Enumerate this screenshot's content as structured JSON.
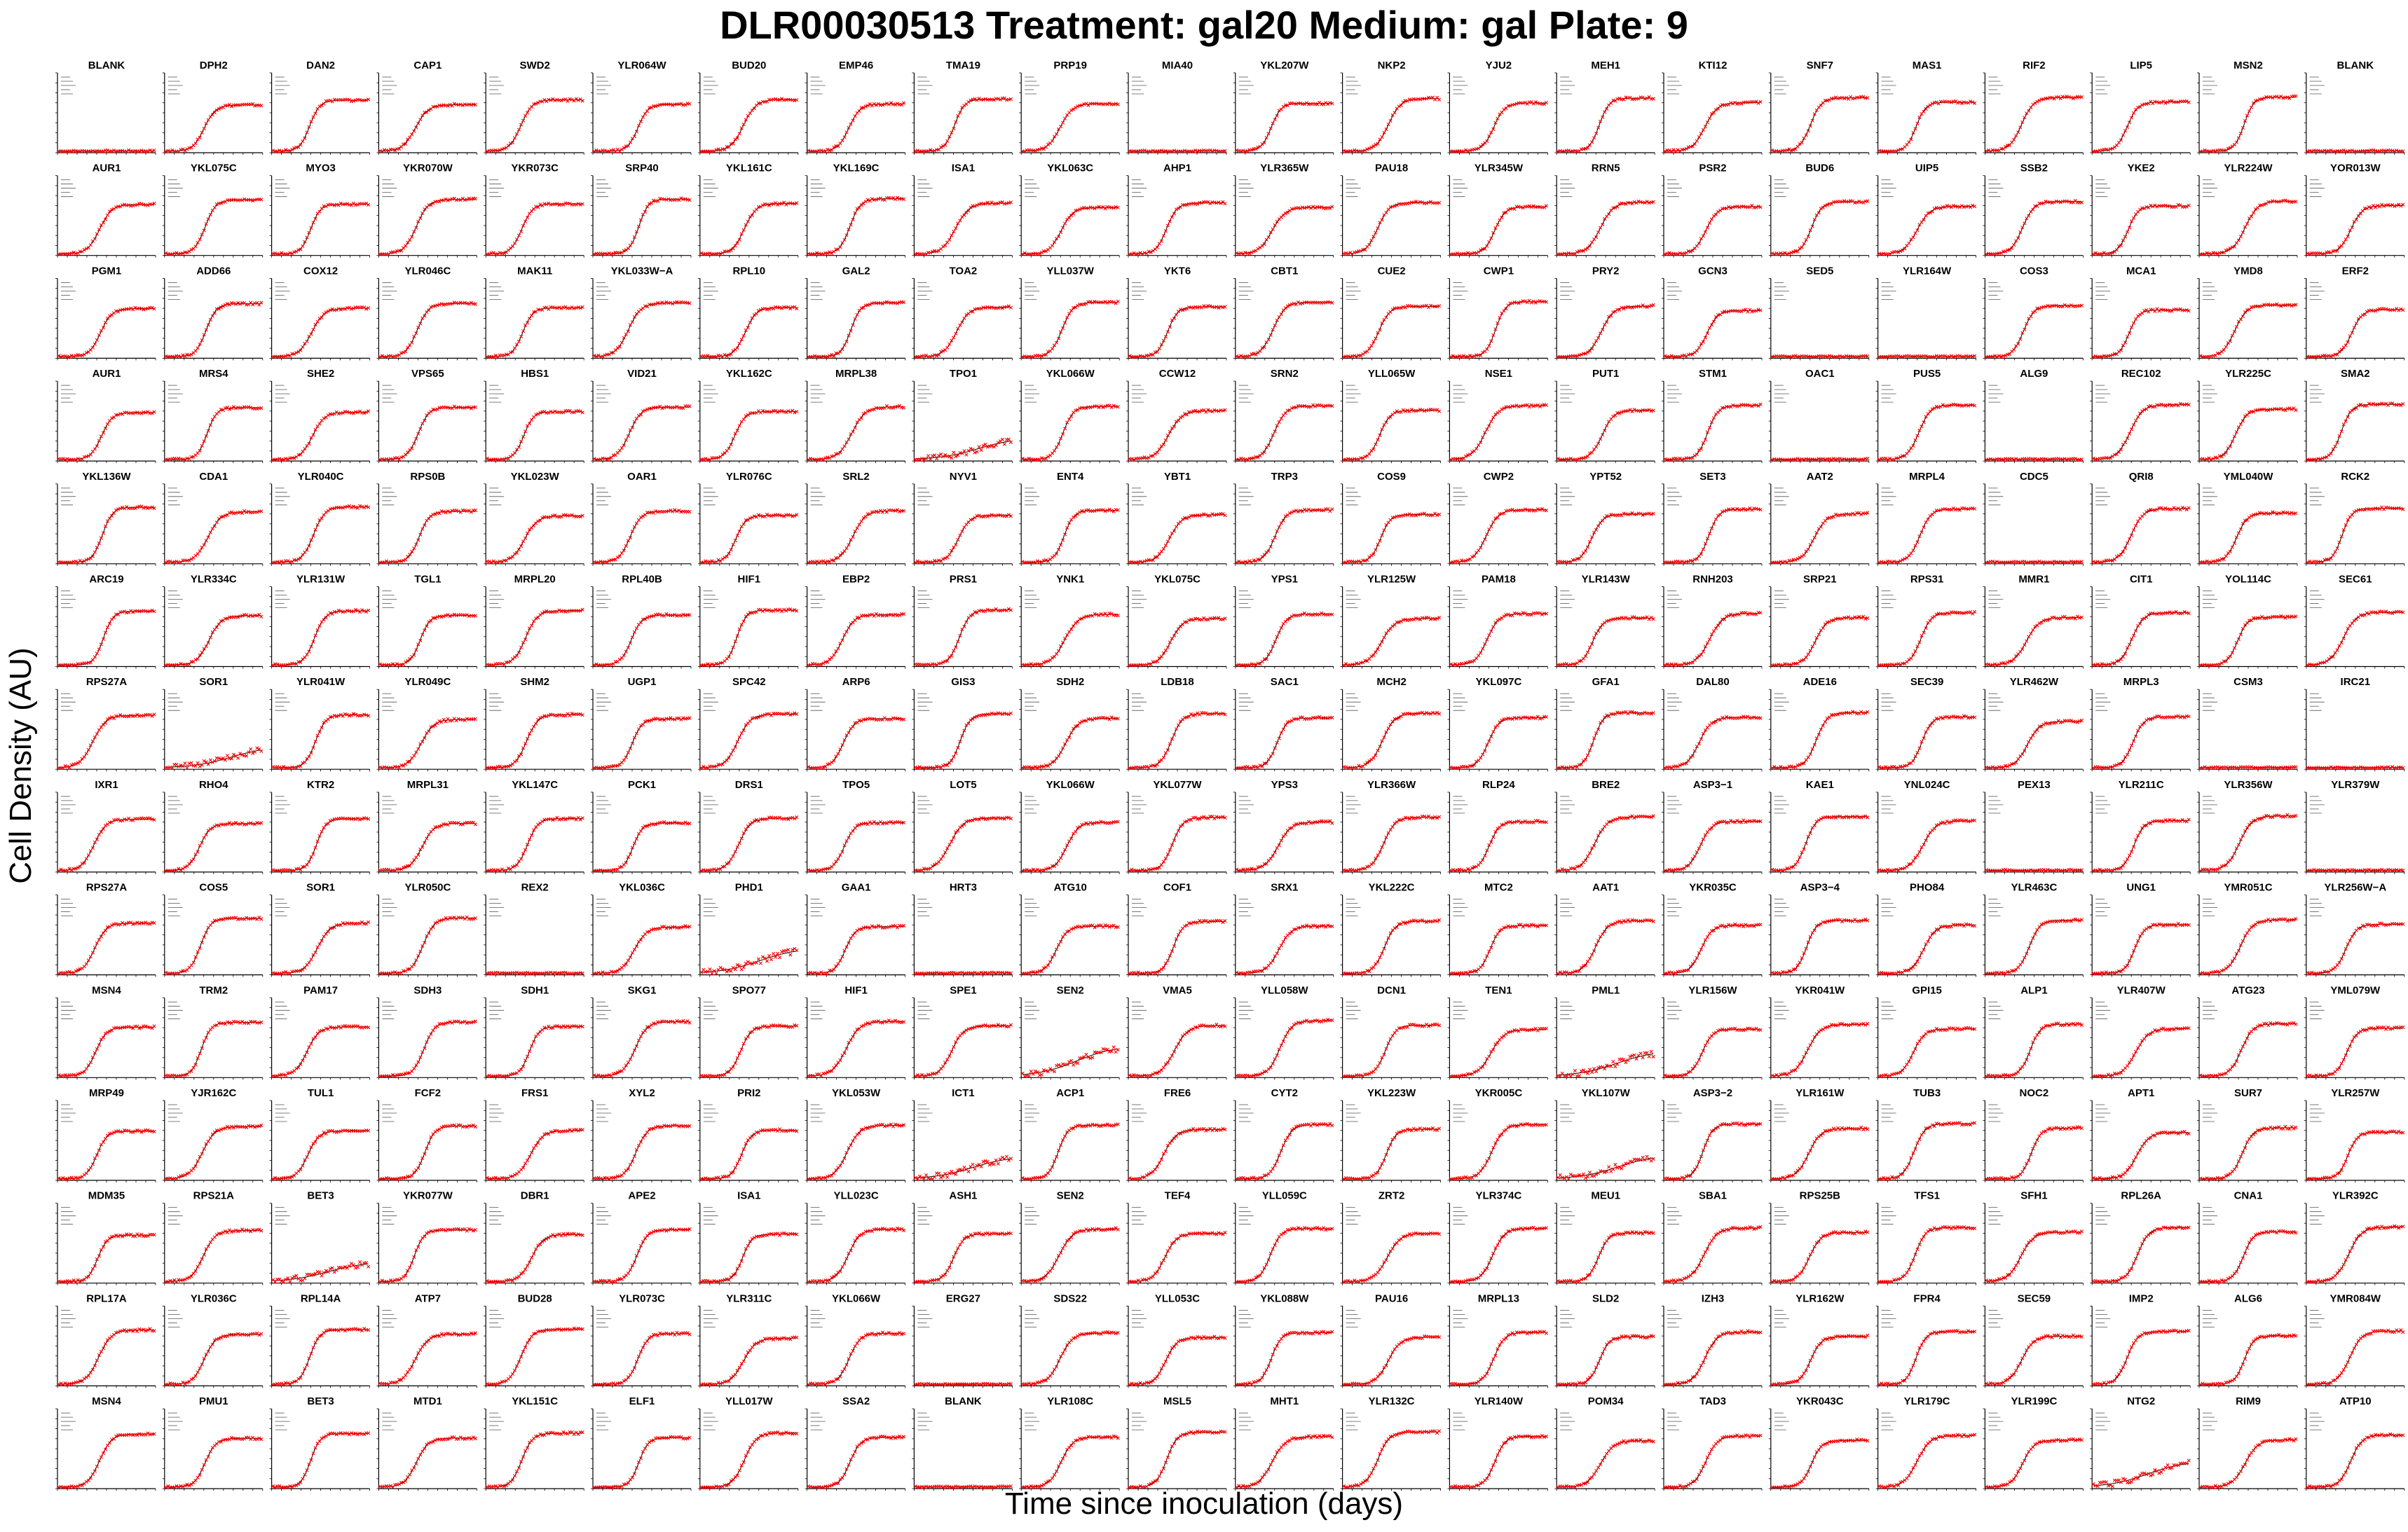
{
  "title": "DLR00030513 Treatment: gal20 Medium: gal Plate: 9",
  "xlabel": "Time since inoculation (days)",
  "ylabel": "Cell Density (AU)",
  "colors": {
    "data": "#ff0000",
    "fit": "#000000",
    "axis": "#000000"
  },
  "chart_data": {
    "type": "scatter",
    "rows": 14,
    "cols": 22,
    "marker": "x",
    "titles": [
      [
        "BLANK",
        "DPH2",
        "DAN2",
        "CAP1",
        "SWD2",
        "YLR064W",
        "BUD20",
        "EMP46",
        "TMA19",
        "PRP19",
        "MIA40",
        "YKL207W",
        "NKP2",
        "YJU2",
        "MEH1",
        "KTI12",
        "SNF7",
        "MAS1",
        "RIF2",
        "LIP5",
        "MSN2",
        "BLANK"
      ],
      [
        "AUR1",
        "YKL075C",
        "MYO3",
        "YKR070W",
        "YKR073C",
        "SRP40",
        "YKL161C",
        "YKL169C",
        "ISA1",
        "YKL063C",
        "AHP1",
        "YLR365W",
        "PAU18",
        "YLR345W",
        "RRN5",
        "PSR2",
        "BUD6",
        "UIP5",
        "SSB2",
        "YKE2",
        "YLR224W",
        "YOR013W"
      ],
      [
        "PGM1",
        "ADD66",
        "COX12",
        "YLR046C",
        "MAK11",
        "YKL033W−A",
        "RPL10",
        "GAL2",
        "TOA2",
        "YLL037W",
        "YKT6",
        "CBT1",
        "CUE2",
        "CWP1",
        "PRY2",
        "GCN3",
        "SED5",
        "YLR164W",
        "COS3",
        "MCA1",
        "YMD8",
        "ERF2"
      ],
      [
        "AUR1",
        "MRS4",
        "SHE2",
        "VPS65",
        "HBS1",
        "VID21",
        "YKL162C",
        "MRPL38",
        "TPO1",
        "YKL066W",
        "CCW12",
        "SRN2",
        "YLL065W",
        "NSE1",
        "PUT1",
        "STM1",
        "OAC1",
        "PUS5",
        "ALG9",
        "REC102",
        "YLR225C",
        "SMA2"
      ],
      [
        "YKL136W",
        "CDA1",
        "YLR040C",
        "RPS0B",
        "YKL023W",
        "OAR1",
        "YLR076C",
        "SRL2",
        "NYV1",
        "ENT4",
        "YBT1",
        "TRP3",
        "COS9",
        "CWP2",
        "YPT52",
        "SET3",
        "AAT2",
        "MRPL4",
        "CDC5",
        "QRI8",
        "YML040W",
        "RCK2"
      ],
      [
        "ARC19",
        "YLR334C",
        "YLR131W",
        "TGL1",
        "MRPL20",
        "RPL40B",
        "HIF1",
        "EBP2",
        "PRS1",
        "YNK1",
        "YKL075C",
        "YPS1",
        "YLR125W",
        "PAM18",
        "YLR143W",
        "RNH203",
        "SRP21",
        "RPS31",
        "MMR1",
        "CIT1",
        "YOL114C",
        "SEC61"
      ],
      [
        "RPS27A",
        "SOR1",
        "YLR041W",
        "YLR049C",
        "SHM2",
        "UGP1",
        "SPC42",
        "ARP6",
        "GIS3",
        "SDH2",
        "LDB18",
        "SAC1",
        "MCH2",
        "YKL097C",
        "GFA1",
        "DAL80",
        "ADE16",
        "SEC39",
        "YLR462W",
        "MRPL3",
        "CSM3",
        "IRC21"
      ],
      [
        "IXR1",
        "RHO4",
        "KTR2",
        "MRPL31",
        "YKL147C",
        "PCK1",
        "DRS1",
        "TPO5",
        "LOT5",
        "YKL066W",
        "YKL077W",
        "YPS3",
        "YLR366W",
        "RLP24",
        "BRE2",
        "ASP3−1",
        "KAE1",
        "YNL024C",
        "PEX13",
        "YLR211C",
        "YLR356W",
        "YLR379W"
      ],
      [
        "RPS27A",
        "COS5",
        "SOR1",
        "YLR050C",
        "REX2",
        "YKL036C",
        "PHD1",
        "GAA1",
        "HRT3",
        "ATG10",
        "COF1",
        "SRX1",
        "YKL222C",
        "MTC2",
        "AAT1",
        "YKR035C",
        "ASP3−4",
        "PHO84",
        "YLR463C",
        "UNG1",
        "YMR051C",
        "YLR256W−A"
      ],
      [
        "MSN4",
        "TRM2",
        "PAM17",
        "SDH3",
        "SDH1",
        "SKG1",
        "SPO77",
        "HIF1",
        "SPE1",
        "SEN2",
        "VMA5",
        "YLL058W",
        "DCN1",
        "TEN1",
        "PML1",
        "YLR156W",
        "YKR041W",
        "GPI15",
        "ALP1",
        "YLR407W",
        "ATG23",
        "YML079W"
      ],
      [
        "MRP49",
        "YJR162C",
        "TUL1",
        "FCF2",
        "FRS1",
        "XYL2",
        "PRI2",
        "YKL053W",
        "ICT1",
        "ACP1",
        "FRE6",
        "CYT2",
        "YKL223W",
        "YKR005C",
        "YKL107W",
        "ASP3−2",
        "YLR161W",
        "TUB3",
        "NOC2",
        "APT1",
        "SUR7",
        "YLR257W"
      ],
      [
        "MDM35",
        "RPS21A",
        "BET3",
        "YKR077W",
        "DBR1",
        "APE2",
        "ISA1",
        "YLL023C",
        "ASH1",
        "SEN2",
        "TEF4",
        "YLL059C",
        "ZRT2",
        "YLR374C",
        "MEU1",
        "SBA1",
        "RPS25B",
        "TFS1",
        "SFH1",
        "RPL26A",
        "CNA1",
        "YLR392C"
      ],
      [
        "RPL17A",
        "YLR036C",
        "RPL14A",
        "ATP7",
        "BUD28",
        "YLR073C",
        "YLR311C",
        "YKL066W",
        "ERG27",
        "SDS22",
        "YLL053C",
        "YKL088W",
        "PAU16",
        "MRPL13",
        "SLD2",
        "IZH3",
        "YLR162W",
        "FPR4",
        "SEC59",
        "IMP2",
        "ALG6",
        "YMR084W"
      ],
      [
        "MSN4",
        "PMU1",
        "BET3",
        "MTD1",
        "YKL151C",
        "ELF1",
        "YLL017W",
        "SSA2",
        "BLANK",
        "YLR108C",
        "MSL5",
        "MHT1",
        "YLR132C",
        "YLR140W",
        "POM34",
        "TAD3",
        "YKR043C",
        "YLR179C",
        "YLR199C",
        "NTG2",
        "RIM9",
        "ATP10"
      ]
    ],
    "no_growth": [
      [
        0,
        0
      ],
      [
        0,
        10
      ],
      [
        0,
        21
      ],
      [
        2,
        16
      ],
      [
        2,
        17
      ],
      [
        3,
        16
      ],
      [
        3,
        18
      ],
      [
        4,
        18
      ],
      [
        6,
        20
      ],
      [
        6,
        21
      ],
      [
        7,
        18
      ],
      [
        7,
        21
      ],
      [
        8,
        4
      ],
      [
        8,
        8
      ],
      [
        12,
        8
      ],
      [
        13,
        8
      ]
    ],
    "weak_growth": [
      [
        3,
        8
      ],
      [
        6,
        1
      ],
      [
        8,
        6
      ],
      [
        9,
        9
      ],
      [
        9,
        14
      ],
      [
        10,
        8
      ],
      [
        10,
        14
      ],
      [
        11,
        2
      ],
      [
        13,
        19
      ]
    ],
    "xlim": [
      0,
      5
    ],
    "ylim": [
      0,
      1
    ],
    "grid": false,
    "legend": "none"
  }
}
